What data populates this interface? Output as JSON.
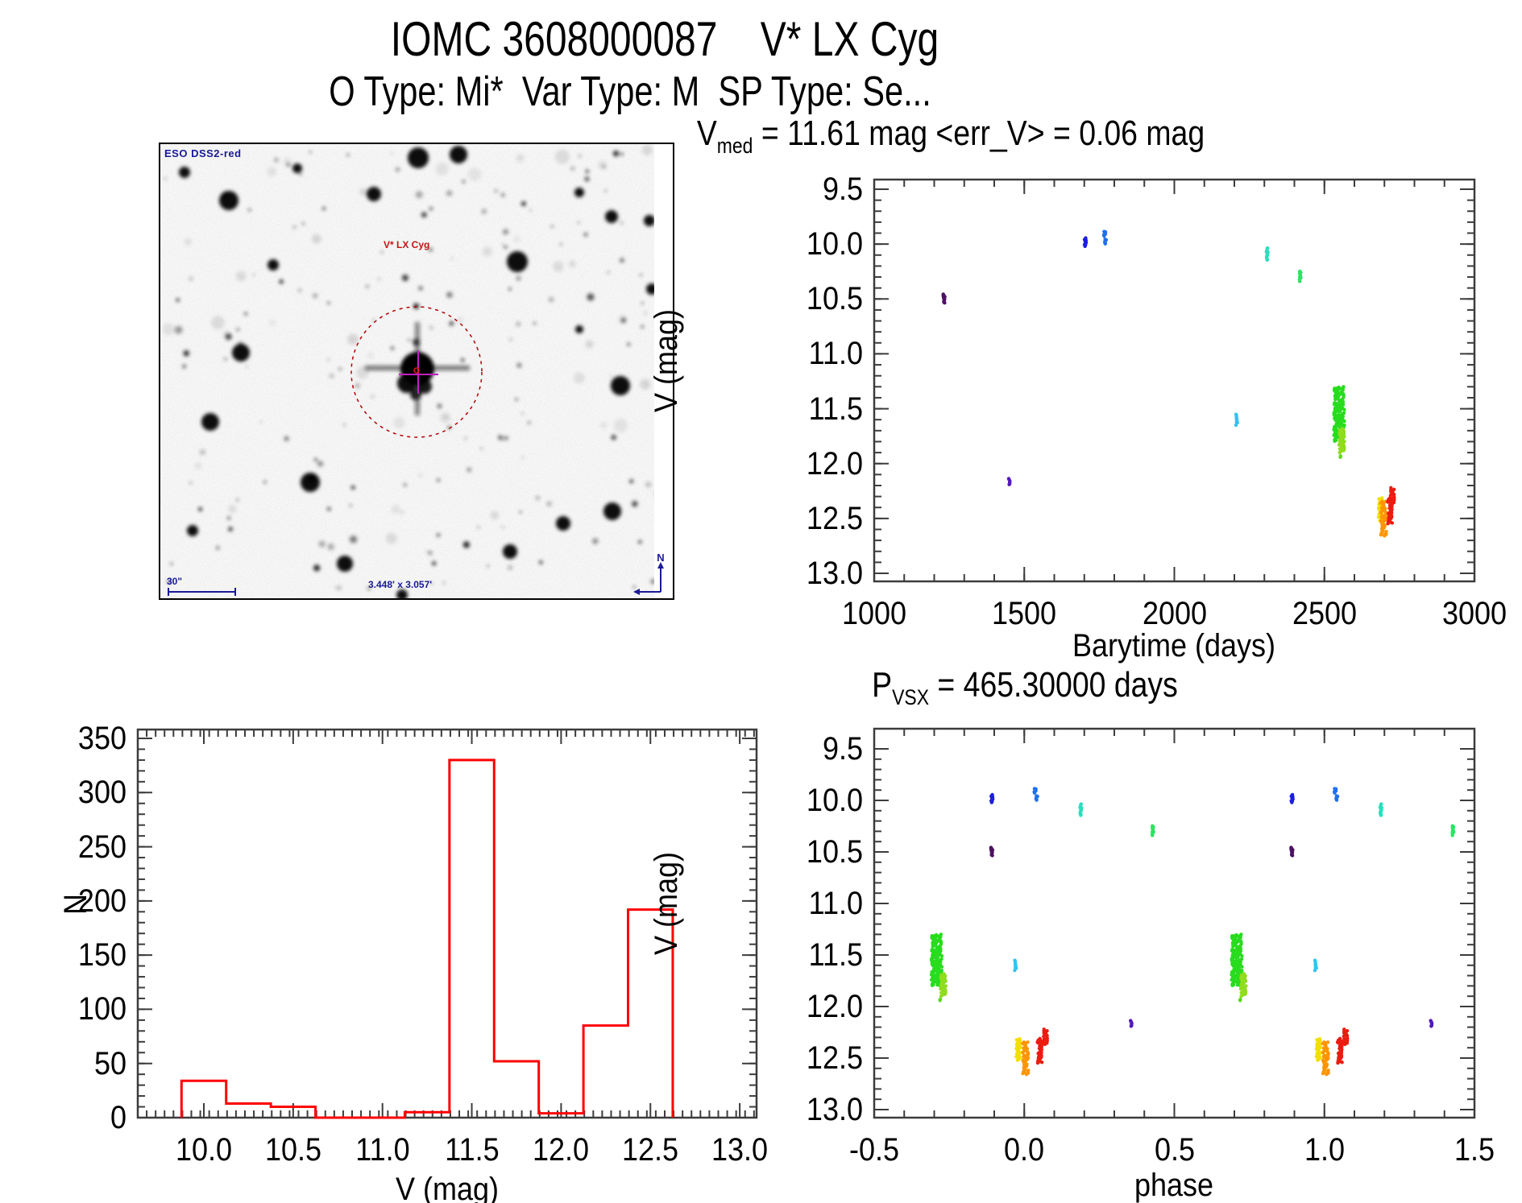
{
  "page": {
    "title": "IOMC 3608000087    V* LX Cyg",
    "subtitle": "O Type: Mi*  Var Type: M  SP Type: Se...",
    "background": "#ffffff",
    "text_color": "#000000",
    "axis_color": "#3c3c3c"
  },
  "sky_image": {
    "survey_label": "ESO DSS2-red",
    "target_label": "V* LX Cyg",
    "scale_bar_label": "30\"",
    "fov_label": "3.448' x 3.057'",
    "compass_north": "N",
    "compass_east": "E",
    "annotation_blue": "#1a1a96",
    "annotation_red": "#c41414",
    "circle_color": "#b40000",
    "crosshair_color": "#c020c0"
  },
  "chart_data": [
    {
      "id": "lightcurve",
      "type": "scatter",
      "title": {
        "prefix": "V",
        "sub": "med",
        "rest": " = 11.61 mag <err_V> = 0.06 mag"
      },
      "xlabel": "Barytime (days)",
      "ylabel": "V (mag)",
      "xlim": [
        1000,
        3000
      ],
      "ylim": [
        9.5,
        13.0
      ],
      "y_axis_inverted_mag": true,
      "xticks": [
        "1000",
        "1500",
        "2000",
        "2500",
        "3000"
      ],
      "yticks": [
        "9.5",
        "10.0",
        "10.5",
        "11.0",
        "11.5",
        "12.0",
        "12.5",
        "13.0"
      ],
      "x_minor_step": 100,
      "y_minor_step": 0.1,
      "clusters": [
        {
          "t": 1233,
          "phase": -0.108,
          "v": [
            10.45,
            10.54
          ],
          "color": "#4c1262",
          "n": 12,
          "w": 1.2
        },
        {
          "t": 1450,
          "phase": 0.356,
          "v": [
            12.13,
            12.2
          ],
          "color": "#5518c0",
          "n": 7,
          "w": 1.0
        },
        {
          "t": 1703,
          "phase": -0.108,
          "v": [
            9.94,
            10.02
          ],
          "color": "#1c1ee0",
          "n": 12,
          "w": 1.2
        },
        {
          "t": 1768,
          "phase": 0.036,
          "v": [
            9.88,
            9.93
          ],
          "color": "#2070ee",
          "n": 7,
          "w": 1.0
        },
        {
          "t": 1771,
          "phase": 0.042,
          "v": [
            9.95,
            10.0
          ],
          "color": "#2070ee",
          "n": 7,
          "w": 1.0
        },
        {
          "t": 2207,
          "phase": -0.03,
          "v": [
            11.55,
            11.65
          ],
          "color": "#30c4f0",
          "n": 9,
          "w": 1.2
        },
        {
          "t": 2309,
          "phase": 0.188,
          "v": [
            10.03,
            10.15
          ],
          "color": "#26e0bc",
          "n": 12,
          "w": 1.2
        },
        {
          "t": 2419,
          "phase": 0.428,
          "v": [
            10.24,
            10.34
          ],
          "color": "#2ae462",
          "n": 10,
          "w": 1.2
        },
        {
          "t": 2549,
          "phase": -0.292,
          "v": [
            11.3,
            11.8
          ],
          "color": "#28dc1e",
          "n": 150,
          "w": 6.5
        },
        {
          "t": 2558,
          "phase": -0.27,
          "v": [
            11.68,
            11.9
          ],
          "color": "#90dc1e",
          "n": 36,
          "w": 3.5
        },
        {
          "t": 2554,
          "phase": -0.28,
          "v": [
            11.93,
            11.95
          ],
          "color": "#5cd81e",
          "n": 2,
          "w": 0.8
        },
        {
          "t": 2687,
          "phase": -0.02,
          "v": [
            12.31,
            12.52
          ],
          "color": "#f2df00",
          "n": 45,
          "w": 2.5
        },
        {
          "t": 2697,
          "phase": 0.004,
          "v": [
            12.34,
            12.66
          ],
          "color": "#ff9500",
          "n": 55,
          "w": 3.5
        },
        {
          "t": 2719,
          "phase": 0.052,
          "v": [
            12.31,
            12.55
          ],
          "color": "#ec1c10",
          "n": 45,
          "w": 3.0
        },
        {
          "t": 2726,
          "phase": 0.07,
          "v": [
            12.22,
            12.37
          ],
          "color": "#ec1c10",
          "n": 20,
          "w": 2.5
        }
      ]
    },
    {
      "id": "histogram",
      "type": "histogram",
      "xlabel": "V (mag)",
      "ylabel": "N",
      "xlim": [
        9.63,
        13.09
      ],
      "ylim": [
        0,
        350
      ],
      "xticks": [
        "10.0",
        "10.5",
        "11.0",
        "11.5",
        "12.0",
        "12.5",
        "13.0"
      ],
      "yticks": [
        "0",
        "50",
        "100",
        "150",
        "200",
        "250",
        "300",
        "350"
      ],
      "x_minor_step": 0.05,
      "y_minor_step": 10,
      "bin_start": 9.875,
      "bin_width": 0.25,
      "counts": [
        34,
        13,
        10,
        0,
        0,
        5,
        330,
        52,
        4,
        85,
        192
      ],
      "outline_color": "#ff0000"
    },
    {
      "id": "phase",
      "type": "scatter",
      "title": {
        "prefix": "P",
        "sub": "VSX",
        "rest": " = 465.30000 days"
      },
      "xlabel": "phase",
      "ylabel": "V (mag)",
      "xlim": [
        -0.5,
        1.5
      ],
      "ylim": [
        9.5,
        13.0
      ],
      "y_axis_inverted_mag": true,
      "xticks": [
        "-0.5",
        "0.0",
        "0.5",
        "1.0",
        "1.5"
      ],
      "yticks": [
        "9.5",
        "10.0",
        "10.5",
        "11.0",
        "11.5",
        "12.0",
        "12.5",
        "13.0"
      ],
      "x_minor_step": 0.1,
      "y_minor_step": 0.1,
      "period_days": 465.3,
      "plotted_cycles": 2,
      "clusters_from": "lightcurve"
    }
  ]
}
